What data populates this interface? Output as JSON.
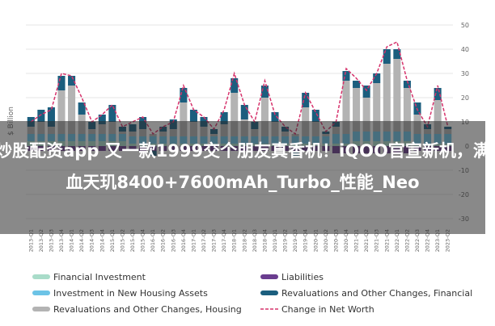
{
  "overlay_text": "炒股配资app 又一款1999交个朋友真香机！iQOO官宣新机，满血天玑8400+7600mAh_Turbo_性能_Neo",
  "chart_data": {
    "type": "bar",
    "y_label": "$ Billion",
    "categories": [
      "2013-Q1",
      "2013-Q2",
      "2013-Q3",
      "2013-Q4",
      "2014-Q1",
      "2014-Q2",
      "2014-Q3",
      "2014-Q4",
      "2015-Q1",
      "2015-Q2",
      "2015-Q3",
      "2015-Q4",
      "2016-Q1",
      "2016-Q2",
      "2016-Q3",
      "2016-Q4",
      "2017-Q1",
      "2017-Q2",
      "2017-Q3",
      "2017-Q4",
      "2018-Q1",
      "2018-Q2",
      "2018-Q3",
      "2018-Q4",
      "2019-Q1",
      "2019-Q2",
      "2019-Q3",
      "2019-Q4",
      "2020-Q1",
      "2020-Q2",
      "2020-Q3",
      "2020-Q4",
      "2021-Q1",
      "2021-Q2",
      "2021-Q3",
      "2021-Q4",
      "2022-Q1",
      "2022-Q2",
      "2022-Q3",
      "2022-Q4",
      "2023-Q1",
      "2023-Q2"
    ],
    "series": [
      {
        "name": "Financial Investment",
        "color": "#a9dcc9",
        "values": [
          2,
          2,
          2,
          2,
          2,
          2,
          2,
          2,
          2,
          2,
          1,
          1,
          1,
          1,
          1,
          1,
          1,
          1,
          1,
          1,
          1,
          1,
          1,
          1,
          1,
          1,
          1,
          1,
          1,
          1,
          1,
          1,
          2,
          2,
          2,
          2,
          2,
          2,
          1,
          1,
          1,
          1
        ]
      },
      {
        "name": "Investment in New Housing Assets",
        "color": "#6cc3e6",
        "values": [
          3,
          3,
          3,
          3,
          3,
          3,
          3,
          3,
          3,
          3,
          3,
          3,
          3,
          3,
          3,
          3,
          3,
          3,
          3,
          3,
          3,
          3,
          3,
          3,
          3,
          3,
          3,
          3,
          3,
          3,
          4,
          4,
          4,
          4,
          4,
          4,
          4,
          4,
          4,
          4,
          4,
          4
        ]
      },
      {
        "name": "Revaluations and Other Changes, Housing",
        "color": "#b3b3b3",
        "values": [
          3,
          5,
          3,
          18,
          20,
          8,
          2,
          4,
          5,
          1,
          2,
          3,
          1,
          2,
          3,
          14,
          6,
          4,
          1,
          5,
          18,
          7,
          3,
          16,
          6,
          2,
          1,
          12,
          6,
          1,
          3,
          22,
          18,
          14,
          20,
          28,
          30,
          18,
          8,
          2,
          14,
          2
        ]
      },
      {
        "name": "Liabilities",
        "color": "#6a3d8f",
        "values": [
          -2,
          -2,
          -2,
          -2,
          -2,
          -2,
          -2,
          -2,
          -2,
          -2,
          -2,
          -2,
          -2,
          -2,
          -2,
          -2,
          -2,
          -2,
          -2,
          -2,
          -2,
          -2,
          -2,
          -2,
          -2,
          -2,
          -2,
          -2,
          -2,
          -2,
          -3,
          -3,
          -3,
          -3,
          -3,
          -3,
          -3,
          -3,
          -2,
          -2,
          -2,
          -2
        ]
      },
      {
        "name": "Revaluations and Other Changes, Financial",
        "color": "#1b5e7e",
        "values": [
          4,
          5,
          8,
          6,
          4,
          5,
          3,
          4,
          7,
          2,
          3,
          5,
          -2,
          2,
          4,
          6,
          5,
          4,
          2,
          5,
          6,
          6,
          3,
          5,
          4,
          2,
          -2,
          6,
          5,
          1,
          2,
          4,
          3,
          5,
          4,
          6,
          4,
          3,
          5,
          2,
          5,
          1
        ]
      },
      {
        "name": "Change in Net Worth",
        "color": "#d6336c",
        "type": "line",
        "values": [
          10,
          13,
          15,
          30,
          29,
          20,
          10,
          13,
          17,
          8,
          10,
          12,
          5,
          8,
          10,
          25,
          15,
          12,
          7,
          15,
          30,
          17,
          10,
          27,
          13,
          8,
          5,
          22,
          14,
          6,
          10,
          32,
          28,
          23,
          30,
          41,
          43,
          27,
          15,
          8,
          25,
          8
        ]
      }
    ],
    "ylim": [
      -30,
      50
    ],
    "yticks": [
      50,
      40,
      30,
      20,
      10,
      0,
      -10,
      -20,
      -30
    ],
    "grid": true
  }
}
